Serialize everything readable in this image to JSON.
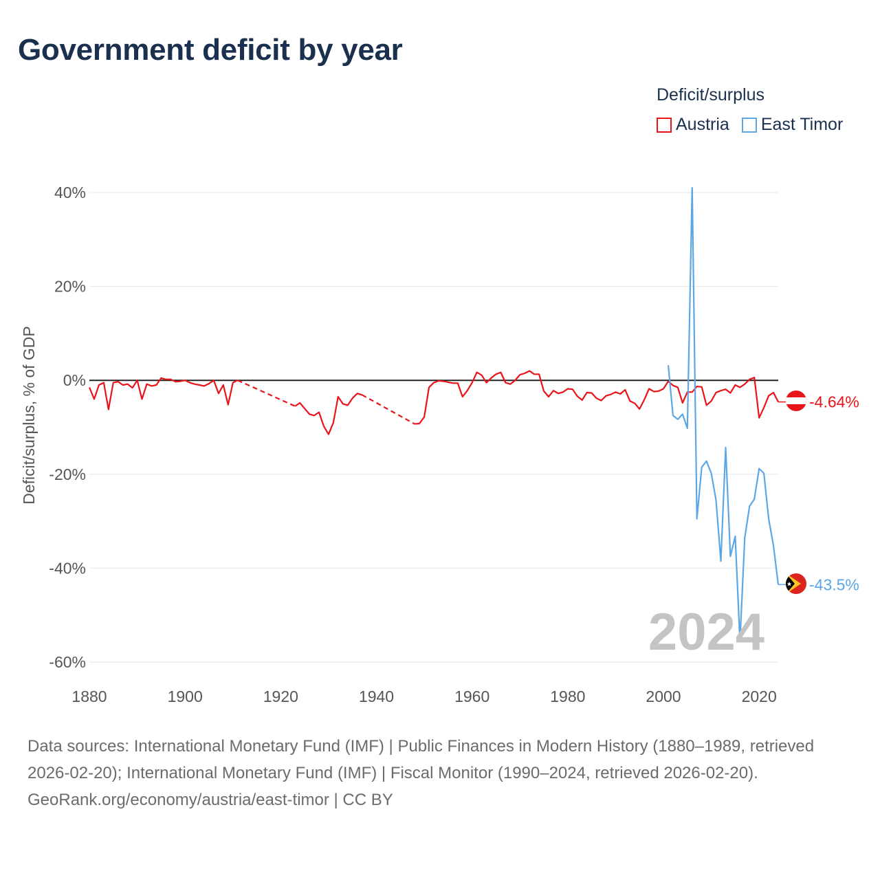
{
  "title": "Government deficit by year",
  "legend": {
    "title": "Deficit/surplus",
    "items": [
      {
        "name": "Austria",
        "color": "#e8141a"
      },
      {
        "name": "East Timor",
        "color": "#5aa6e6"
      }
    ]
  },
  "chart_data": {
    "type": "line",
    "title": "Government deficit by year",
    "xlabel": "",
    "ylabel": "Deficit/surplus, % of GDP",
    "xlim": [
      1880,
      2024
    ],
    "ylim": [
      -60,
      40
    ],
    "xticks": [
      1880,
      1900,
      1920,
      1940,
      1960,
      1980,
      2000,
      2020
    ],
    "xtick_labels": [
      "1880",
      "1900",
      "1920",
      "1940",
      "1960",
      "1980",
      "2000",
      "2020"
    ],
    "yticks": [
      40,
      20,
      0,
      -20,
      -40,
      -60
    ],
    "ytick_labels": [
      "40%",
      "20%",
      "0%",
      "-20%",
      "-40%",
      "-60%"
    ],
    "year_watermark": "2024",
    "series": [
      {
        "name": "Austria",
        "color": "#e8141a",
        "end_label": "-4.64%",
        "segments": [
          {
            "style": "solid",
            "x": [
              1880,
              1881,
              1882,
              1883,
              1884,
              1885,
              1886,
              1887,
              1888,
              1889,
              1890,
              1891,
              1892,
              1893,
              1894,
              1895,
              1896,
              1897,
              1898,
              1899,
              1900,
              1901,
              1902,
              1903,
              1904,
              1905,
              1906,
              1907,
              1908,
              1909,
              1910,
              1911
            ],
            "y": [
              -1.5,
              -4,
              -1,
              -0.5,
              -6.2,
              -0.5,
              -0.3,
              -1,
              -0.8,
              -1.6,
              0,
              -4,
              -0.8,
              -1.2,
              -1,
              0.5,
              0.2,
              0.2,
              -0.3,
              -0.2,
              0,
              -0.5,
              -0.8,
              -1,
              -1.2,
              -0.7,
              0,
              -2.8,
              -1,
              -5.2,
              -0.5,
              0
            ]
          },
          {
            "style": "dashed",
            "x": [
              1911,
              1923
            ],
            "y": [
              0,
              -5.5
            ]
          },
          {
            "style": "solid",
            "x": [
              1923,
              1924,
              1925,
              1926,
              1927,
              1928,
              1929,
              1930,
              1931,
              1932,
              1933,
              1934,
              1935,
              1936,
              1937
            ],
            "y": [
              -5.5,
              -4.8,
              -6,
              -7.2,
              -7.5,
              -6.8,
              -9.8,
              -11.5,
              -9,
              -3.5,
              -5,
              -5.3,
              -3.8,
              -2.8,
              -3.1
            ]
          },
          {
            "style": "dashed",
            "x": [
              1937,
              1948
            ],
            "y": [
              -3.1,
              -9.3
            ]
          },
          {
            "style": "solid",
            "x": [
              1948,
              1949,
              1950,
              1951,
              1952,
              1953,
              1954,
              1955,
              1956,
              1957,
              1958,
              1959,
              1960,
              1961,
              1962,
              1963,
              1964,
              1965,
              1966,
              1967,
              1968,
              1969,
              1970,
              1971,
              1972,
              1973,
              1974,
              1975,
              1976,
              1977,
              1978,
              1979,
              1980,
              1981,
              1982,
              1983,
              1984,
              1985,
              1986,
              1987,
              1988,
              1989,
              1990,
              1991,
              1992,
              1993,
              1994,
              1995,
              1996,
              1997,
              1998,
              1999,
              2000,
              2001,
              2002,
              2003,
              2004,
              2005,
              2006,
              2007,
              2008,
              2009,
              2010,
              2011,
              2012,
              2013,
              2014,
              2015,
              2016,
              2017,
              2018,
              2019,
              2020,
              2021,
              2022,
              2023,
              2024
            ],
            "y": [
              -9.3,
              -9.2,
              -7.8,
              -1.5,
              -0.5,
              -0.1,
              -0.2,
              -0.4,
              -0.6,
              -0.6,
              -3.5,
              -2.2,
              -0.5,
              1.7,
              1.1,
              -0.5,
              0.5,
              1.3,
              1.7,
              -0.5,
              -0.8,
              0,
              1.2,
              1.5,
              2,
              1.3,
              1.3,
              -2.3,
              -3.5,
              -2.2,
              -2.8,
              -2.5,
              -1.8,
              -1.9,
              -3.4,
              -4.2,
              -2.6,
              -2.7,
              -3.8,
              -4.3,
              -3.3,
              -3.0,
              -2.5,
              -2.9,
              -2.0,
              -4.4,
              -4.9,
              -6.1,
              -4.1,
              -1.8,
              -2.4,
              -2.3,
              -1.8,
              -0.2,
              -1.1,
              -1.5,
              -4.8,
              -2.5,
              -2.5,
              -1.3,
              -1.4,
              -5.3,
              -4.4,
              -2.6,
              -2.2,
              -1.9,
              -2.7,
              -1.0,
              -1.5,
              -0.8,
              0.2,
              0.6,
              -8.0,
              -5.8,
              -3.3,
              -2.6,
              -4.6
            ]
          }
        ]
      },
      {
        "name": "East Timor",
        "color": "#5aa6e6",
        "end_label": "-43.5%",
        "segments": [
          {
            "style": "solid",
            "x": [
              2001,
              2002,
              2003,
              2004,
              2005,
              2006,
              2007,
              2008,
              2009,
              2010,
              2011,
              2012,
              2013,
              2014,
              2015,
              2016,
              2017,
              2018,
              2019,
              2020,
              2021,
              2022,
              2023,
              2024
            ],
            "y": [
              3.2,
              -7.5,
              -8.3,
              -7.2,
              -10.2,
              41,
              -29.5,
              -18.5,
              -17.2,
              -19.8,
              -25.5,
              -38.5,
              -14.3,
              -37.5,
              -33.2,
              -55.5,
              -33.5,
              -26.8,
              -25.3,
              -18.8,
              -19.8,
              -29.5,
              -35.2,
              -43.5
            ]
          }
        ]
      }
    ]
  },
  "footer": {
    "sources": "Data sources: International Monetary Fund (IMF) | Public Finances in Modern History (1880–1989, retrieved 2026-02-20); International Monetary Fund (IMF) | Fiscal Monitor (1990–2024, retrieved 2026-02-20).",
    "credit": "GeoRank.org/economy/austria/east-timor | CC BY"
  }
}
